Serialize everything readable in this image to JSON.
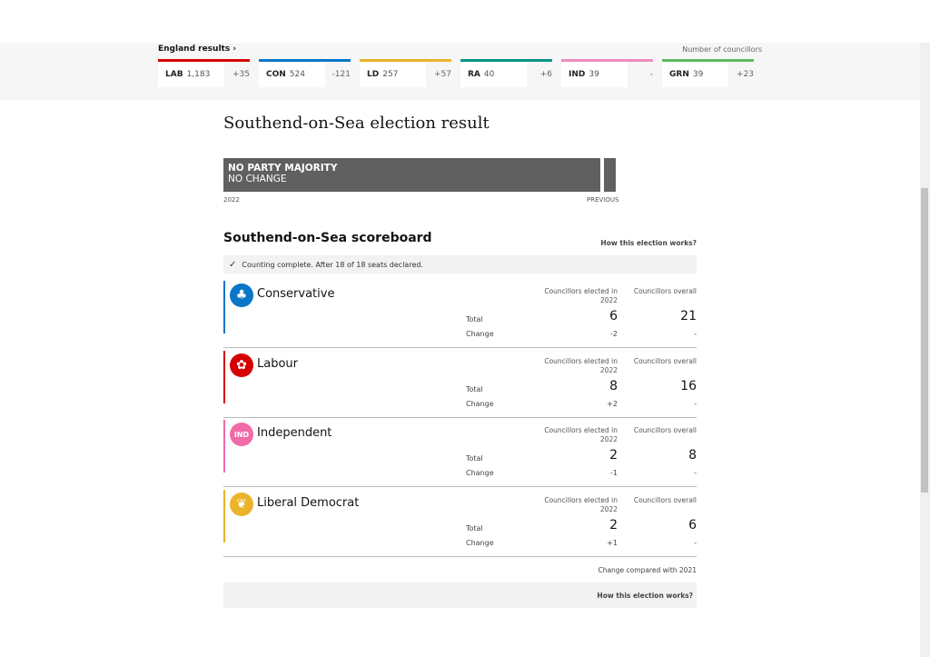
{
  "england": {
    "title": "England results ›",
    "note": "Number of councillors",
    "parties": [
      {
        "abbr": "LAB",
        "count": "1,183",
        "change": "+35",
        "color": "#d50000"
      },
      {
        "abbr": "CON",
        "count": "524",
        "change": "-121",
        "color": "#0a76c8"
      },
      {
        "abbr": "LD",
        "count": "257",
        "change": "+57",
        "color": "#eab42a"
      },
      {
        "abbr": "RA",
        "count": "40",
        "change": "+6",
        "color": "#0d9488"
      },
      {
        "abbr": "IND",
        "count": "39",
        "change": "-",
        "color": "#f08ac0"
      },
      {
        "abbr": "GRN",
        "count": "39",
        "change": "+23",
        "color": "#5db95d"
      }
    ]
  },
  "result": {
    "title": "Southend-on-Sea election result",
    "line1": "NO PARTY MAJORITY",
    "line2": "NO CHANGE",
    "left_label": "2022",
    "right_label": "PREVIOUS"
  },
  "scoreboard": {
    "title": "Southend-on-Sea scoreboard",
    "how": "How this election works?",
    "status": "Counting complete. After 18 of 18 seats declared.",
    "col1": "Councillors elected in 2022",
    "col2": "Councillors overall",
    "total_label": "Total",
    "change_label": "Change",
    "parties": [
      {
        "name": "Conservative",
        "color": "#0a76c8",
        "logo": "tree-icon",
        "elected": "6",
        "overall": "21",
        "change": "-2",
        "overall_change": "-"
      },
      {
        "name": "Labour",
        "color": "#d50000",
        "logo": "rose-icon",
        "elected": "8",
        "overall": "16",
        "change": "+2",
        "overall_change": "-"
      },
      {
        "name": "Independent",
        "color": "#f06ba8",
        "logo": "IND",
        "elected": "2",
        "overall": "8",
        "change": "-1",
        "overall_change": "-"
      },
      {
        "name": "Liberal Democrat",
        "color": "#eab42a",
        "logo": "bird-icon",
        "elected": "2",
        "overall": "6",
        "change": "+1",
        "overall_change": "-"
      }
    ],
    "footnote": "Change compared with 2021",
    "how_bottom": "How this election works?"
  }
}
